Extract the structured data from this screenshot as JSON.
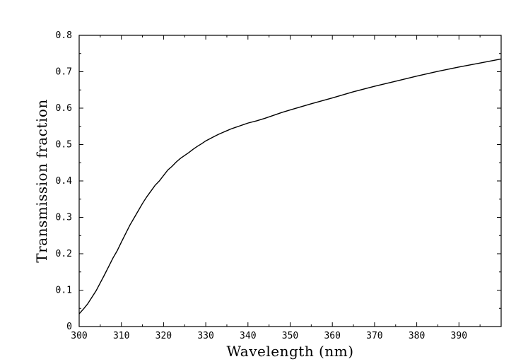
{
  "chart_data": {
    "type": "line",
    "title": "",
    "xlabel": "Wavelength (nm)",
    "ylabel": "Transmission fraction",
    "xlim": [
      300,
      400
    ],
    "ylim": [
      0,
      0.8
    ],
    "grid": false,
    "legend": "none",
    "x_ticks": [
      300,
      310,
      320,
      330,
      340,
      350,
      360,
      370,
      380,
      390
    ],
    "x_tick_labels": [
      "300",
      "310",
      "320",
      "330",
      "340",
      "350",
      "360",
      "370",
      "380",
      "390"
    ],
    "y_ticks": [
      0,
      0.1,
      0.2,
      0.3,
      0.4,
      0.5,
      0.6,
      0.7,
      0.8
    ],
    "y_tick_labels": [
      "0",
      "0.1",
      "0.2",
      "0.3",
      "0.4",
      "0.5",
      "0.6",
      "0.7",
      "0.8"
    ],
    "line_color": "#000000",
    "series": [
      {
        "x": [
          300,
          301,
          302,
          303,
          304,
          305,
          306,
          307,
          308,
          309,
          310,
          311,
          312,
          313,
          314,
          315,
          316,
          317,
          318,
          319,
          320,
          321,
          322,
          323,
          324,
          325,
          326,
          327,
          328,
          329,
          330,
          331,
          332,
          333,
          334,
          335,
          336,
          337,
          338,
          339,
          340,
          342,
          344,
          346,
          348,
          350,
          355,
          360,
          365,
          370,
          375,
          380,
          385,
          390,
          395,
          400
        ],
        "y": [
          0.035,
          0.048,
          0.062,
          0.08,
          0.098,
          0.12,
          0.142,
          0.165,
          0.188,
          0.208,
          0.232,
          0.255,
          0.278,
          0.298,
          0.318,
          0.338,
          0.356,
          0.372,
          0.388,
          0.4,
          0.415,
          0.43,
          0.44,
          0.452,
          0.462,
          0.47,
          0.478,
          0.487,
          0.495,
          0.502,
          0.51,
          0.516,
          0.522,
          0.528,
          0.533,
          0.538,
          0.543,
          0.547,
          0.551,
          0.555,
          0.559,
          0.565,
          0.572,
          0.58,
          0.588,
          0.595,
          0.612,
          0.628,
          0.645,
          0.66,
          0.674,
          0.688,
          0.701,
          0.713,
          0.724,
          0.735
        ]
      }
    ]
  }
}
